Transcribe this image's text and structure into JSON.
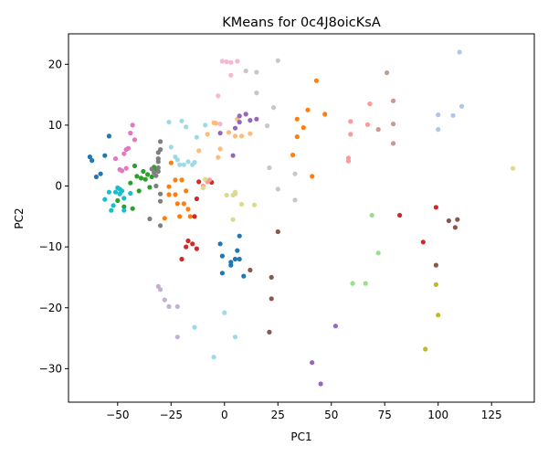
{
  "chart_data": {
    "type": "scatter",
    "title": "KMeans for 0c4J8oicKsA",
    "xlabel": "PC1",
    "ylabel": "PC2",
    "xlim": [
      -73,
      145
    ],
    "ylim": [
      -35.5,
      25
    ],
    "xticks": [
      -50,
      -25,
      0,
      25,
      50,
      75,
      100,
      125
    ],
    "yticks": [
      -30,
      -20,
      -10,
      0,
      10,
      20
    ],
    "grid": false,
    "legend": "none",
    "series": [
      {
        "color": "#1f77b4",
        "points": [
          [
            -63,
            4.8
          ],
          [
            -62,
            4.2
          ],
          [
            -60,
            1.5
          ],
          [
            -58,
            2
          ],
          [
            -56,
            5
          ],
          [
            -54,
            8.2
          ],
          [
            -2,
            -9.5
          ],
          [
            -1,
            -11.5
          ],
          [
            -1,
            -14.3
          ],
          [
            3,
            -13
          ],
          [
            3,
            -12.5
          ],
          [
            5,
            -12
          ],
          [
            6,
            -10.6
          ],
          [
            7,
            -8.2
          ],
          [
            7,
            -12
          ],
          [
            9,
            -14.8
          ]
        ]
      },
      {
        "color": "#aec7e8",
        "points": [
          [
            100,
            11.7
          ],
          [
            107,
            11.6
          ],
          [
            110,
            22
          ],
          [
            111,
            13.1
          ],
          [
            100,
            9.3
          ]
        ]
      },
      {
        "color": "#ff7f0e",
        "points": [
          [
            -28,
            -5.3
          ],
          [
            -26,
            -1.4
          ],
          [
            -26,
            -0.1
          ],
          [
            -25,
            3.8
          ],
          [
            -23,
            1
          ],
          [
            -23,
            -1.4
          ],
          [
            -22,
            -2.9
          ],
          [
            -21,
            -5
          ],
          [
            -20,
            1
          ],
          [
            -19,
            -2.9
          ],
          [
            -18,
            -0.8
          ],
          [
            -17,
            -3.8
          ],
          [
            -16,
            -5
          ],
          [
            32,
            5.1
          ],
          [
            34,
            8.1
          ],
          [
            34,
            11
          ],
          [
            37,
            9.6
          ],
          [
            39,
            12.5
          ],
          [
            41,
            1.6
          ],
          [
            43,
            17.3
          ],
          [
            47,
            11.8
          ]
        ]
      },
      {
        "color": "#ffbb78",
        "points": [
          [
            -12,
            5.8
          ],
          [
            -8,
            8.5
          ],
          [
            -5,
            10.4
          ],
          [
            -4,
            10.3
          ],
          [
            -2,
            6.1
          ],
          [
            -3,
            4.7
          ],
          [
            2,
            8.8
          ],
          [
            5,
            8.2
          ],
          [
            6,
            11
          ],
          [
            8,
            8.2
          ],
          [
            12,
            8.6
          ]
        ]
      },
      {
        "color": "#2ca02c",
        "points": [
          [
            -50,
            -2.4
          ],
          [
            -47,
            -3.4
          ],
          [
            -44,
            0.5
          ],
          [
            -43,
            -3.7
          ],
          [
            -42,
            3.3
          ],
          [
            -41,
            1.6
          ],
          [
            -40,
            -0.8
          ],
          [
            -39,
            1.3
          ],
          [
            -38,
            2.4
          ],
          [
            -37,
            1.1
          ],
          [
            -36,
            1.9
          ],
          [
            -35,
            -0.2
          ],
          [
            -34,
            1.5
          ],
          [
            -33,
            3.1
          ],
          [
            -32,
            2.8
          ]
        ]
      },
      {
        "color": "#98df8a",
        "points": [
          [
            69,
            -4.8
          ],
          [
            72,
            -11
          ],
          [
            60,
            -16
          ],
          [
            66,
            -16
          ]
        ]
      },
      {
        "color": "#d62728",
        "points": [
          [
            -18,
            -10
          ],
          [
            -17,
            -9
          ],
          [
            -15,
            -9.5
          ],
          [
            -13,
            -10.3
          ],
          [
            -13,
            -2.1
          ],
          [
            -14,
            -5
          ],
          [
            -12,
            0.7
          ],
          [
            -20,
            -12
          ],
          [
            -6,
            0.6
          ],
          [
            82,
            -4.8
          ],
          [
            93,
            -9.2
          ],
          [
            99,
            -3.5
          ]
        ]
      },
      {
        "color": "#ff9896",
        "points": [
          [
            59,
            10.6
          ],
          [
            59,
            8.5
          ],
          [
            58,
            4.1
          ],
          [
            58,
            4.6
          ],
          [
            67,
            10.1
          ],
          [
            68,
            13.5
          ],
          [
            -10,
            0
          ],
          [
            -8,
            0.7
          ],
          [
            -7,
            1
          ]
        ]
      },
      {
        "color": "#9467bd",
        "points": [
          [
            -2,
            8.7
          ],
          [
            4,
            5
          ],
          [
            5,
            9.5
          ],
          [
            7,
            10.5
          ],
          [
            7,
            11.5
          ],
          [
            10,
            11.8
          ],
          [
            12,
            10.8
          ],
          [
            15,
            11
          ],
          [
            41,
            -29
          ],
          [
            45,
            -32.5
          ],
          [
            52,
            -23
          ]
        ]
      },
      {
        "color": "#c5b0d5",
        "points": [
          [
            -31,
            -16.5
          ],
          [
            -30,
            -17
          ],
          [
            -28,
            -18.7
          ],
          [
            -26,
            -19.8
          ],
          [
            -22,
            -19.8
          ],
          [
            -22,
            -24.8
          ]
        ]
      },
      {
        "color": "#8c564b",
        "points": [
          [
            12,
            -13.8
          ],
          [
            22,
            -15
          ],
          [
            22,
            -18.5
          ],
          [
            21,
            -24
          ],
          [
            25,
            -7.5
          ],
          [
            105,
            -5.7
          ],
          [
            108,
            -6.8
          ],
          [
            109,
            -5.5
          ],
          [
            99,
            -13
          ]
        ]
      },
      {
        "color": "#c49c94",
        "points": [
          [
            72,
            9.3
          ],
          [
            76,
            18.6
          ],
          [
            79,
            14
          ],
          [
            79,
            10.2
          ],
          [
            79,
            7
          ]
        ]
      },
      {
        "color": "#e377c2",
        "points": [
          [
            -51,
            4.5
          ],
          [
            -49,
            2.7
          ],
          [
            -48,
            2.5
          ],
          [
            -47,
            5.3
          ],
          [
            -46,
            6
          ],
          [
            -45,
            6.2
          ],
          [
            -44,
            8.7
          ],
          [
            -43,
            10
          ],
          [
            -42,
            7.6
          ],
          [
            -46,
            2.9
          ]
        ]
      },
      {
        "color": "#f7b6d2",
        "points": [
          [
            -1,
            20.5
          ],
          [
            1,
            20.4
          ],
          [
            3,
            20.3
          ],
          [
            -3,
            14.8
          ],
          [
            3,
            18.2
          ],
          [
            -2,
            10.2
          ],
          [
            6,
            20.5
          ]
        ]
      },
      {
        "color": "#7f7f7f",
        "points": [
          [
            -35,
            -5.4
          ],
          [
            -34,
            2.8
          ],
          [
            -33,
            2.2
          ],
          [
            -32,
            1.7
          ],
          [
            -32,
            0
          ],
          [
            -31,
            3
          ],
          [
            -31,
            2.4
          ],
          [
            -31,
            4
          ],
          [
            -31,
            4.5
          ],
          [
            -31,
            5.5
          ],
          [
            -30,
            6
          ],
          [
            -30,
            7.3
          ],
          [
            -30,
            -1.3
          ],
          [
            -30,
            -2.5
          ],
          [
            -30,
            -6.5
          ]
        ]
      },
      {
        "color": "#c7c7c7",
        "points": [
          [
            10,
            18.9
          ],
          [
            15,
            18.7
          ],
          [
            15,
            15.3
          ],
          [
            20,
            9.9
          ],
          [
            21,
            3
          ],
          [
            23,
            12.9
          ],
          [
            25,
            20.6
          ],
          [
            25,
            -0.5
          ],
          [
            33,
            -2.3
          ],
          [
            33,
            2
          ]
        ]
      },
      {
        "color": "#bcbd22",
        "points": [
          [
            94,
            -26.8
          ],
          [
            99,
            -16.2
          ],
          [
            100,
            -21.2
          ]
        ]
      },
      {
        "color": "#dbdb8d",
        "points": [
          [
            -10,
            -0.3
          ],
          [
            -9,
            1.1
          ],
          [
            1,
            -1.5
          ],
          [
            4,
            -1.5
          ],
          [
            5,
            -1
          ],
          [
            5,
            -1.3
          ],
          [
            8,
            -3
          ],
          [
            14,
            -3.1
          ],
          [
            4,
            -5.5
          ],
          [
            135,
            2.9
          ]
        ]
      },
      {
        "color": "#17becf",
        "points": [
          [
            -56,
            -2.2
          ],
          [
            -54,
            -1
          ],
          [
            -53,
            -4
          ],
          [
            -52,
            -3.2
          ],
          [
            -51,
            -1
          ],
          [
            -50,
            -0.3
          ],
          [
            -49,
            -0.5
          ],
          [
            -49,
            -1.3
          ],
          [
            -48,
            -0.8
          ],
          [
            -47,
            -2
          ],
          [
            -47,
            -4
          ],
          [
            -44,
            -1.2
          ]
        ]
      },
      {
        "color": "#9edae5",
        "points": [
          [
            -26,
            10.5
          ],
          [
            -25,
            6.4
          ],
          [
            -23,
            4.8
          ],
          [
            -22,
            4.3
          ],
          [
            -21,
            3.5
          ],
          [
            -20,
            10.7
          ],
          [
            -19,
            3.5
          ],
          [
            -18,
            9.7
          ],
          [
            -17,
            4
          ],
          [
            -15,
            3.5
          ],
          [
            -14,
            3.9
          ],
          [
            -13,
            8
          ],
          [
            -9,
            10
          ],
          [
            -14,
            -23.2
          ],
          [
            0,
            -20.8
          ],
          [
            -5,
            -28.1
          ],
          [
            5,
            -24.8
          ]
        ]
      }
    ]
  }
}
